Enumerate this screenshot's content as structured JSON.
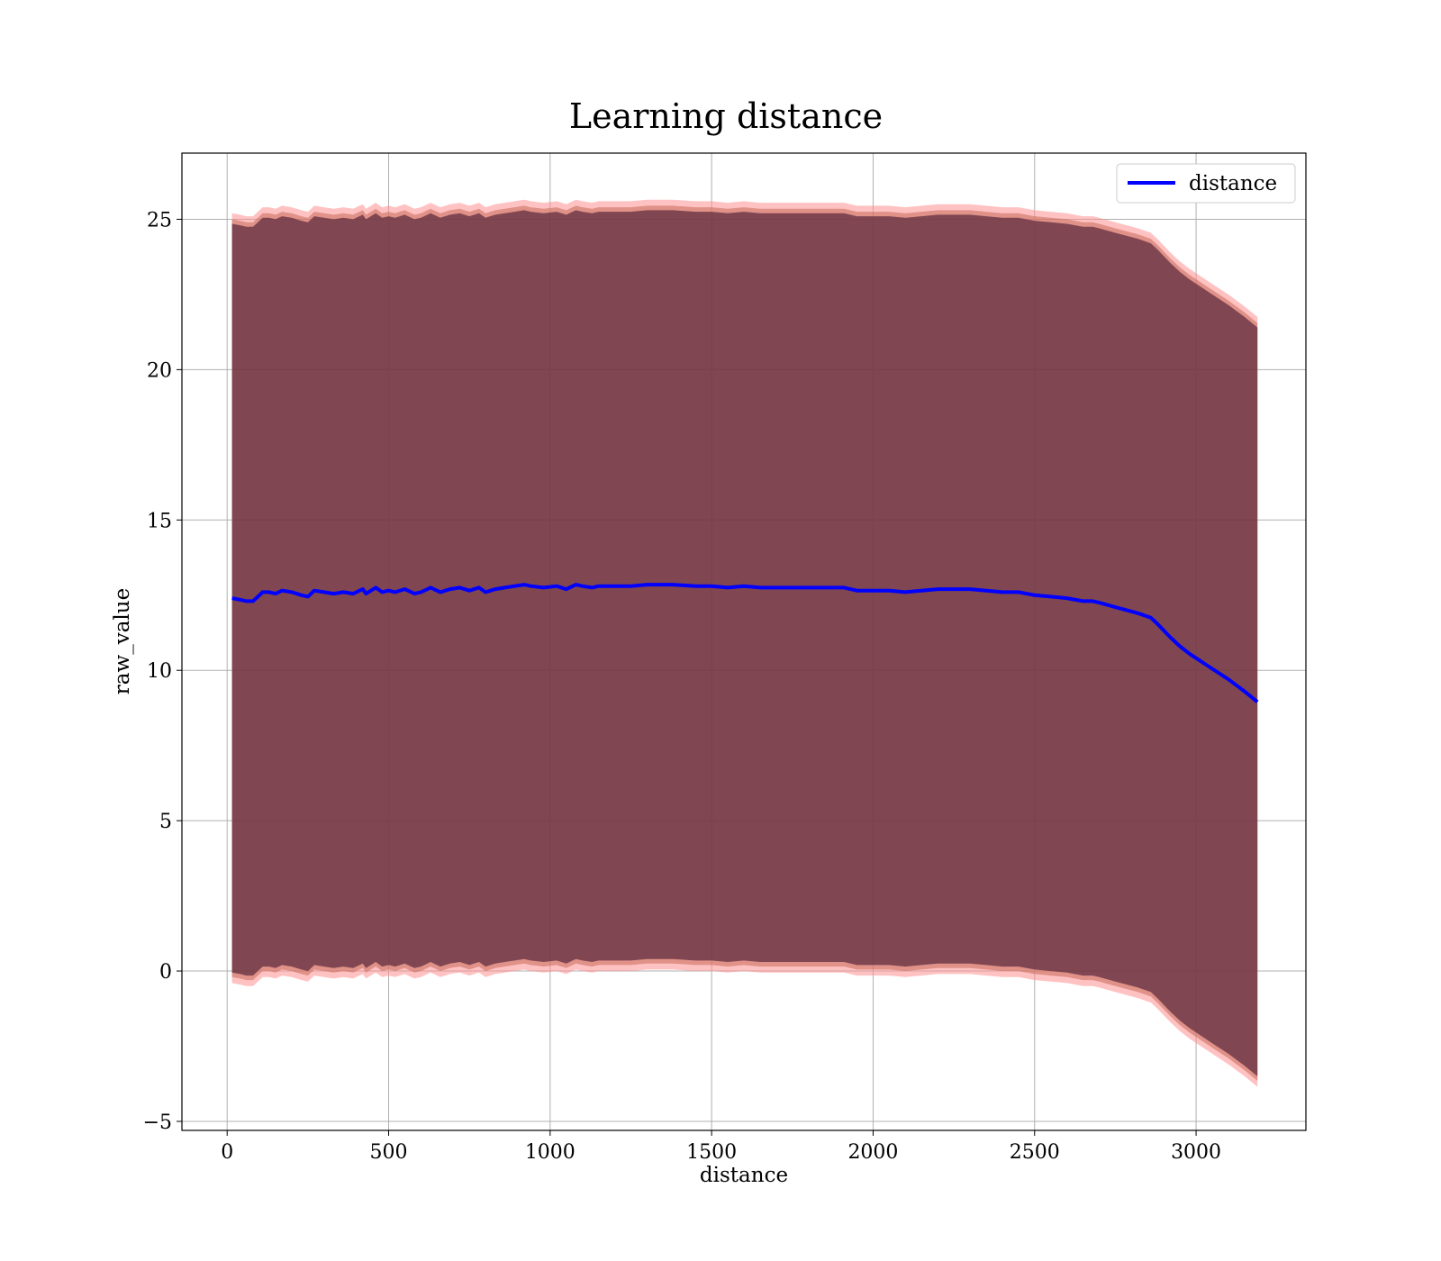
{
  "chart_data": {
    "type": "line",
    "title": "Learning distance",
    "xlabel": "distance",
    "ylabel": "raw_value",
    "xlim": [
      -140,
      3340
    ],
    "ylim": [
      -5.3,
      27.2
    ],
    "xticks": [
      0,
      500,
      1000,
      1500,
      2000,
      2500,
      3000
    ],
    "xtick_labels": [
      "0",
      "500",
      "1000",
      "1500",
      "2000",
      "2500",
      "3000"
    ],
    "yticks": [
      -5,
      0,
      5,
      10,
      15,
      20,
      25
    ],
    "ytick_labels": [
      "−5",
      "0",
      "5",
      "10",
      "15",
      "20",
      "25"
    ],
    "grid": true,
    "legend": {
      "location": "top-right",
      "entries": [
        "distance"
      ]
    },
    "series": [
      {
        "name": "distance",
        "color": "#0000ff",
        "x": [
          15,
          40,
          60,
          80,
          90,
          110,
          130,
          150,
          170,
          200,
          230,
          250,
          270,
          300,
          330,
          360,
          390,
          420,
          430,
          460,
          480,
          500,
          520,
          550,
          580,
          600,
          630,
          660,
          690,
          720,
          750,
          780,
          800,
          830,
          860,
          890,
          920,
          940,
          980,
          1020,
          1050,
          1080,
          1100,
          1130,
          1150,
          1200,
          1250,
          1300,
          1350,
          1380,
          1450,
          1500,
          1550,
          1600,
          1650,
          1700,
          1750,
          1800,
          1850,
          1910,
          1950,
          2000,
          2050,
          2100,
          2150,
          2200,
          2230,
          2300,
          2350,
          2400,
          2450,
          2500,
          2550,
          2600,
          2650,
          2680,
          2700,
          2750,
          2820,
          2860,
          2880,
          2920,
          2950,
          2980,
          3050,
          3100,
          3150,
          3190
        ],
        "y": [
          12.4,
          12.35,
          12.3,
          12.3,
          12.4,
          12.6,
          12.6,
          12.55,
          12.65,
          12.6,
          12.5,
          12.45,
          12.65,
          12.6,
          12.55,
          12.6,
          12.55,
          12.7,
          12.55,
          12.75,
          12.6,
          12.65,
          12.6,
          12.7,
          12.55,
          12.6,
          12.75,
          12.6,
          12.7,
          12.75,
          12.65,
          12.75,
          12.6,
          12.7,
          12.75,
          12.8,
          12.85,
          12.8,
          12.75,
          12.8,
          12.7,
          12.85,
          12.8,
          12.75,
          12.8,
          12.8,
          12.8,
          12.85,
          12.85,
          12.85,
          12.8,
          12.8,
          12.75,
          12.8,
          12.75,
          12.75,
          12.75,
          12.75,
          12.75,
          12.75,
          12.65,
          12.65,
          12.65,
          12.6,
          12.65,
          12.7,
          12.7,
          12.7,
          12.65,
          12.6,
          12.6,
          12.5,
          12.45,
          12.4,
          12.3,
          12.3,
          12.25,
          12.1,
          11.9,
          11.75,
          11.55,
          11.1,
          10.8,
          10.55,
          10.05,
          9.7,
          9.3,
          8.95
        ],
        "band_offsets": [
          12.45,
          12.6,
          12.8
        ],
        "band_colors": [
          "#5a2a3c",
          "#c76a5a",
          "#ff9090"
        ]
      }
    ]
  }
}
